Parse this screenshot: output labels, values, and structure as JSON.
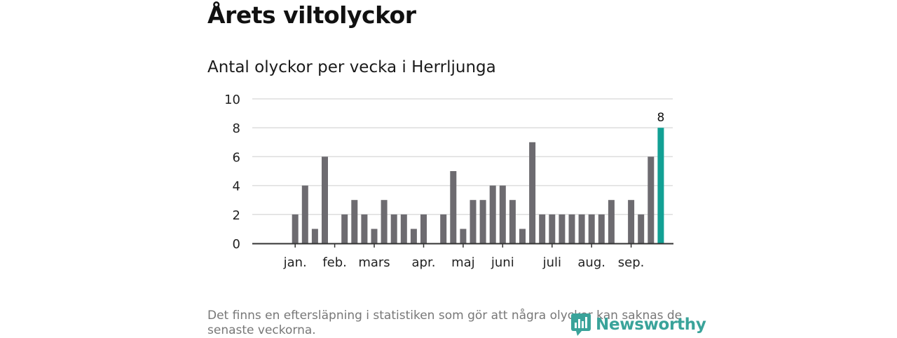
{
  "page": {
    "title": "Årets viltolyckor",
    "subtitle": "Antal olyckor per vecka i Herrljunga",
    "note": "Det finns en eftersläpning i statistiken som gör att några olyckor kan saknas de senaste veckorna.",
    "brand": "Newsworthy"
  },
  "colors": {
    "bar": "#6d6b70",
    "highlight": "#12a094",
    "grid": "#dddddd",
    "axis": "#333333",
    "brand": "#3aa39a"
  },
  "chart_data": {
    "type": "bar",
    "title": "Antal olyckor per vecka i Herrljunga",
    "xlabel": "",
    "ylabel": "",
    "ylim": [
      0,
      10
    ],
    "yticks": [
      0,
      2,
      4,
      6,
      8,
      10
    ],
    "grid": true,
    "weeks": [
      1,
      2,
      3,
      4,
      5,
      6,
      7,
      8,
      9,
      10,
      11,
      12,
      13,
      14,
      15,
      16,
      17,
      18,
      19,
      20,
      21,
      22,
      23,
      24,
      25,
      26,
      27,
      28,
      29,
      30,
      31,
      32,
      33,
      34,
      35,
      36,
      37,
      38,
      39,
      40
    ],
    "values": [
      0,
      0,
      2,
      4,
      1,
      6,
      0,
      2,
      3,
      2,
      1,
      3,
      2,
      2,
      1,
      2,
      0,
      2,
      5,
      1,
      3,
      3,
      4,
      4,
      3,
      1,
      7,
      2,
      2,
      2,
      2,
      2,
      2,
      2,
      3,
      0,
      3,
      2,
      6,
      8
    ],
    "highlight_index": 39,
    "highlight_label": "8",
    "month_labels": [
      {
        "label": "jan.",
        "week": 3
      },
      {
        "label": "feb.",
        "week": 7
      },
      {
        "label": "mars",
        "week": 11
      },
      {
        "label": "apr.",
        "week": 16
      },
      {
        "label": "maj",
        "week": 20
      },
      {
        "label": "juni",
        "week": 24
      },
      {
        "label": "juli",
        "week": 29
      },
      {
        "label": "aug.",
        "week": 33
      },
      {
        "label": "sep.",
        "week": 37
      }
    ]
  }
}
